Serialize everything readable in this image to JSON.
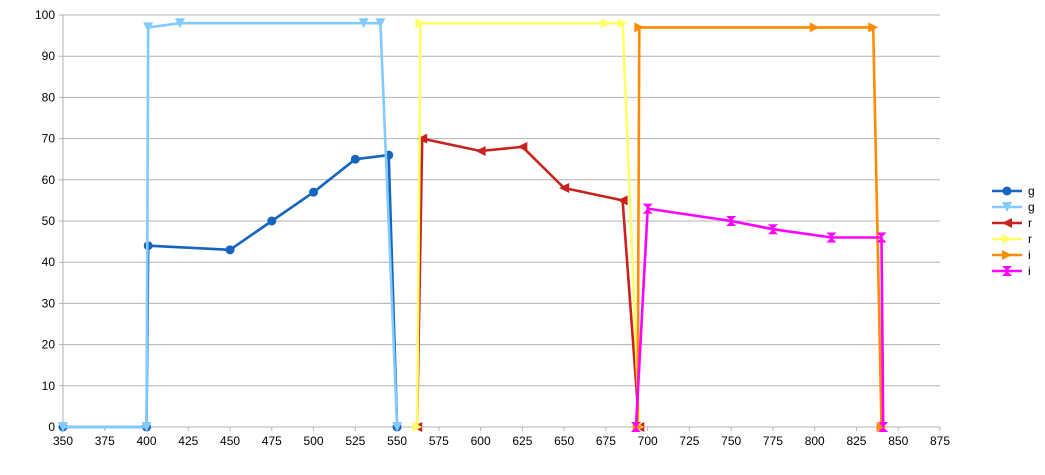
{
  "chart_data": {
    "type": "scatter",
    "title": "",
    "xlabel": "",
    "ylabel": "",
    "xlim": [
      350,
      875
    ],
    "ylim": [
      0,
      100
    ],
    "x_ticks": [
      "350",
      "375",
      "400",
      "425",
      "450",
      "475",
      "500",
      "525",
      "550",
      "575",
      "600",
      "625",
      "650",
      "675",
      "700",
      "725",
      "750",
      "775",
      "800",
      "825",
      "850",
      "875"
    ],
    "y_ticks": [
      "0",
      "10",
      "20",
      "30",
      "40",
      "50",
      "60",
      "70",
      "80",
      "90",
      "100"
    ],
    "grid": "horizontal",
    "legend_position": "right",
    "series": [
      {
        "name": "g",
        "color": "#1565c0",
        "marker": "circle",
        "points": [
          [
            350,
            0
          ],
          [
            400,
            0
          ],
          [
            401,
            44
          ],
          [
            450,
            43
          ],
          [
            475,
            50
          ],
          [
            500,
            57
          ],
          [
            525,
            65
          ],
          [
            545,
            66
          ],
          [
            550,
            0
          ]
        ]
      },
      {
        "name": "g",
        "color": "#83caff",
        "marker": "triangle-down",
        "points": [
          [
            350,
            0
          ],
          [
            400,
            0
          ],
          [
            401,
            97
          ],
          [
            420,
            98
          ],
          [
            530,
            98
          ],
          [
            540,
            98
          ],
          [
            550,
            0
          ]
        ]
      },
      {
        "name": "r",
        "color": "#c9211e",
        "marker": "triangle-left",
        "points": [
          [
            562,
            0
          ],
          [
            565,
            70
          ],
          [
            600,
            67
          ],
          [
            625,
            68
          ],
          [
            650,
            58
          ],
          [
            685,
            55
          ],
          [
            695,
            0
          ]
        ]
      },
      {
        "name": "r",
        "color": "#ffff66",
        "marker": "triangle-right",
        "points": [
          [
            562,
            0
          ],
          [
            564,
            98
          ],
          [
            675,
            98
          ],
          [
            685,
            98
          ],
          [
            695,
            0
          ]
        ]
      },
      {
        "name": "i",
        "color": "#ff8c00",
        "marker": "triangle-right",
        "points": [
          [
            694,
            0
          ],
          [
            695,
            97
          ],
          [
            800,
            97
          ],
          [
            835,
            97
          ],
          [
            840,
            0
          ]
        ]
      },
      {
        "name": "i",
        "color": "#ff00ff",
        "marker": "hourglass",
        "points": [
          [
            693,
            0
          ],
          [
            700,
            53
          ],
          [
            750,
            50
          ],
          [
            775,
            48
          ],
          [
            810,
            46
          ],
          [
            840,
            46
          ],
          [
            841,
            0
          ]
        ]
      }
    ]
  }
}
